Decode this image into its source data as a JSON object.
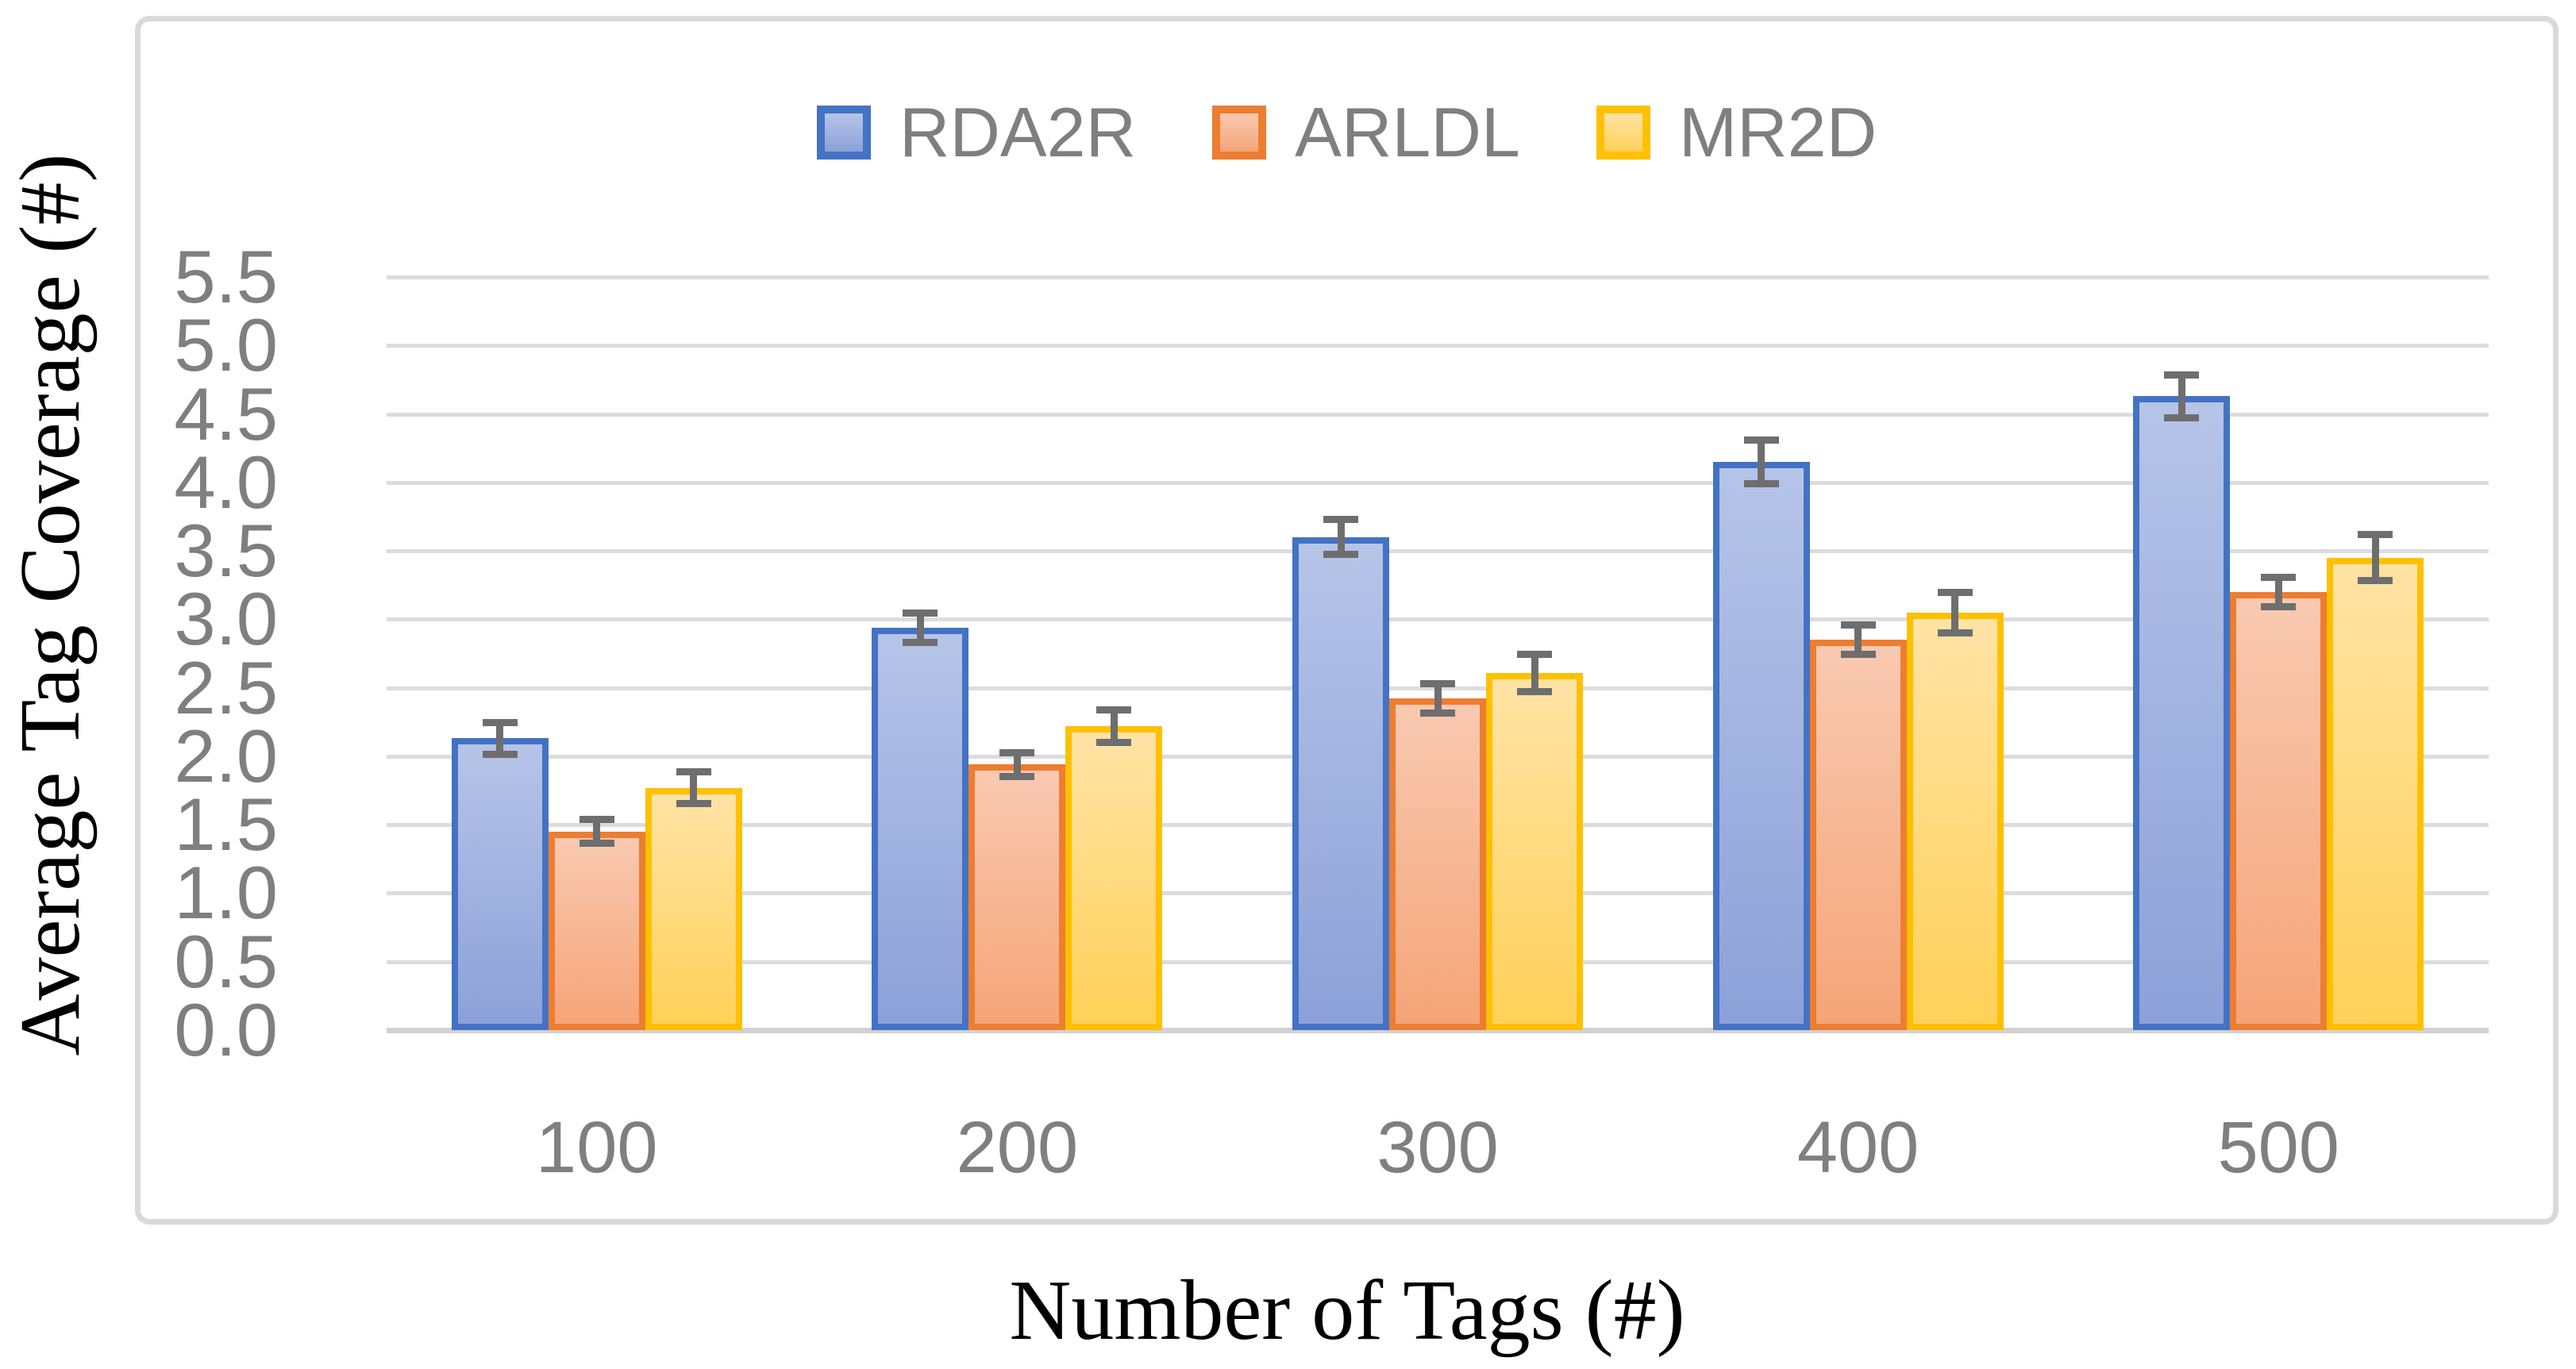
{
  "chart_data": {
    "type": "bar",
    "title": "",
    "xlabel": "Number of Tags (#)",
    "ylabel": "Average Tag Coverage (#)",
    "categories": [
      "100",
      "200",
      "300",
      "400",
      "500"
    ],
    "series": [
      {
        "name": "RDA2R",
        "values": [
          2.13,
          2.94,
          3.6,
          4.15,
          4.63
        ],
        "errors": [
          0.12,
          0.11,
          0.13,
          0.16,
          0.16
        ],
        "border_color": "#4472c4",
        "fill_top": "#b6c4e8",
        "fill_bottom": "#8ca1d8"
      },
      {
        "name": "ARLDL",
        "values": [
          1.45,
          1.94,
          2.42,
          2.85,
          3.2
        ],
        "errors": [
          0.09,
          0.09,
          0.11,
          0.11,
          0.11
        ],
        "border_color": "#ed7d31",
        "fill_top": "#f8c9b1",
        "fill_bottom": "#f5a578"
      },
      {
        "name": "MR2D",
        "values": [
          1.77,
          2.22,
          2.61,
          3.05,
          3.45
        ],
        "errors": [
          0.12,
          0.12,
          0.14,
          0.15,
          0.17
        ],
        "border_color": "#ffc000",
        "fill_top": "#ffe3a5",
        "fill_bottom": "#ffd159"
      }
    ],
    "ylim": [
      0,
      5.5
    ],
    "y_tick_step": 0.5,
    "y_tick_labels": [
      "0.0",
      "0.5",
      "1.0",
      "1.5",
      "2.0",
      "2.5",
      "3.0",
      "3.5",
      "4.0",
      "4.5",
      "5.0",
      "5.5"
    ],
    "grid": "horizontal",
    "legend_position": "top-center",
    "colors": {
      "gridline": "#dcdcdc",
      "baseline": "#d2d2d2",
      "frame_border": "#d9d9d9",
      "axis_text": "#7f7f7f",
      "legend_text": "#7f7f7f",
      "title_text": "#000000",
      "error_bar": "#6e6e6e",
      "background": "#ffffff"
    }
  }
}
